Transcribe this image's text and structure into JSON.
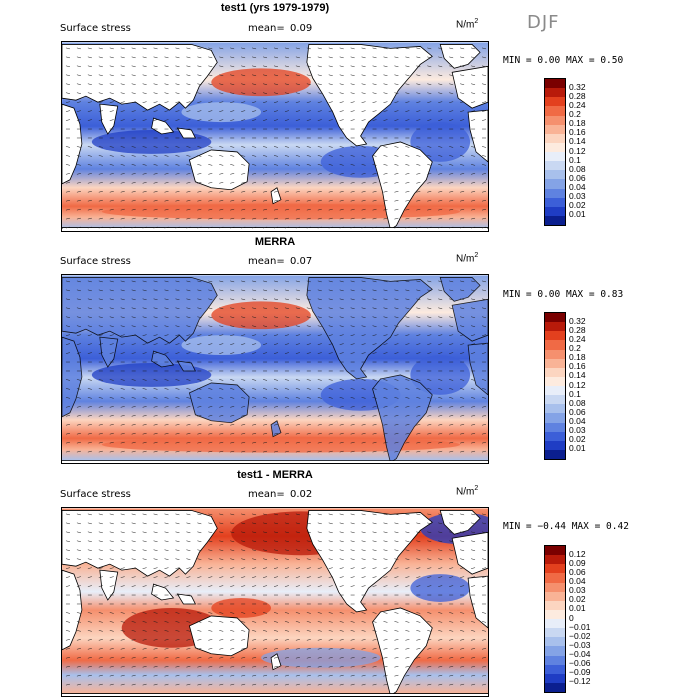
{
  "season": "DJF",
  "units": {
    "base": "N/m",
    "exp": "2"
  },
  "panels": [
    {
      "title": "test1 (yrs 1979-1979)",
      "variable": "Surface stress",
      "mean_label": "mean=",
      "mean_value": "0.09",
      "min_label": "MIN =",
      "min_value": "0.00",
      "max_label": "MAX =",
      "max_value": "0.50",
      "colorbar_labels": [
        "0.32",
        "0.28",
        "0.24",
        "0.2",
        "0.18",
        "0.16",
        "0.14",
        "0.12",
        "0.1",
        "0.08",
        "0.06",
        "0.04",
        "0.03",
        "0.02",
        "0.01"
      ],
      "colorbar_colors": [
        "#7a0000",
        "#b81a0a",
        "#e3401e",
        "#f06a45",
        "#f5906e",
        "#f9b396",
        "#fcd5c0",
        "#fdebdf",
        "#e8eef9",
        "#c9d8f2",
        "#a8c0ec",
        "#84a3e6",
        "#5f82e0",
        "#3c5fd8",
        "#1f3dc4",
        "#0b1f8f"
      ]
    },
    {
      "title": "MERRA",
      "variable": "Surface stress",
      "mean_label": "mean=",
      "mean_value": "0.07",
      "min_label": "MIN =",
      "min_value": "0.00",
      "max_label": "MAX =",
      "max_value": "0.83",
      "colorbar_labels": [
        "0.32",
        "0.28",
        "0.24",
        "0.2",
        "0.18",
        "0.16",
        "0.14",
        "0.12",
        "0.1",
        "0.08",
        "0.06",
        "0.04",
        "0.03",
        "0.02",
        "0.01"
      ],
      "colorbar_colors": [
        "#7a0000",
        "#b81a0a",
        "#e3401e",
        "#f06a45",
        "#f5906e",
        "#f9b396",
        "#fcd5c0",
        "#fdebdf",
        "#e8eef9",
        "#c9d8f2",
        "#a8c0ec",
        "#84a3e6",
        "#5f82e0",
        "#3c5fd8",
        "#1f3dc4",
        "#0b1f8f"
      ]
    },
    {
      "title": "test1 - MERRA",
      "variable": "Surface stress",
      "mean_label": "mean=",
      "mean_value": "0.02",
      "min_label": "MIN =",
      "min_value": "−0.44",
      "max_label": "MAX =",
      "max_value": "0.42",
      "colorbar_labels": [
        "0.12",
        "0.09",
        "0.06",
        "0.04",
        "0.03",
        "0.02",
        "0.01",
        "0",
        "−0.01",
        "−0.02",
        "−0.03",
        "−0.04",
        "−0.06",
        "−0.09",
        "−0.12"
      ],
      "colorbar_colors": [
        "#7a0000",
        "#b81a0a",
        "#e3401e",
        "#f06a45",
        "#f5906e",
        "#f9b396",
        "#fcd5c0",
        "#fdebdf",
        "#e8eef9",
        "#c9d8f2",
        "#a8c0ec",
        "#84a3e6",
        "#5f82e0",
        "#3c5fd8",
        "#1f3dc4",
        "#0b1f8f"
      ]
    }
  ],
  "chart_data": [
    {
      "type": "heatmap",
      "title": "test1 (yrs 1979-1979)",
      "field": "Surface stress",
      "mean": 0.09,
      "min": 0.0,
      "max": 0.5
    },
    {
      "type": "heatmap",
      "title": "MERRA",
      "field": "Surface stress",
      "mean": 0.07,
      "min": 0.0,
      "max": 0.83
    },
    {
      "type": "heatmap",
      "title": "test1 - MERRA",
      "field": "Surface stress",
      "mean": 0.02,
      "min": -0.44,
      "max": 0.42
    }
  ]
}
